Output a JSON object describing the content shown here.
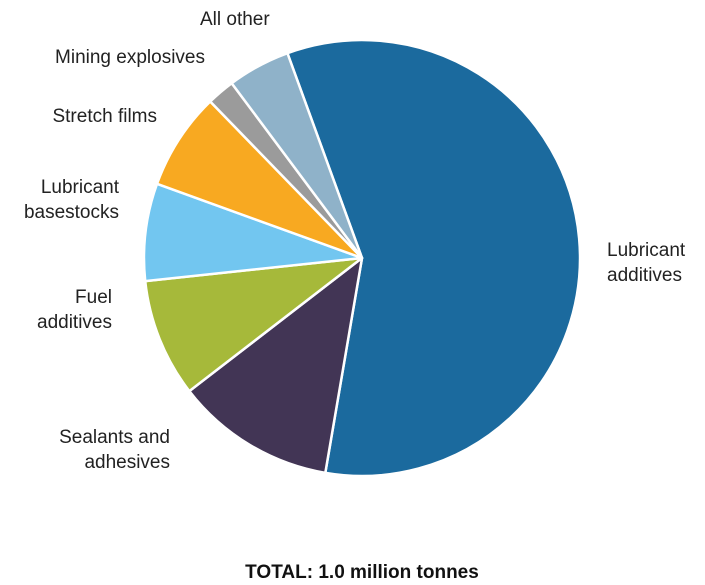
{
  "chart_data": {
    "type": "pie",
    "title": "",
    "total_label": "TOTAL: 1.0 million tonnes",
    "slices": [
      {
        "label": "Lubricant additives",
        "lines": [
          "Lubricant",
          "additives"
        ],
        "value": 56.5,
        "color": "#1b6a9e"
      },
      {
        "label": "Sealants and adhesives",
        "lines": [
          "Sealants  and",
          "adhesives"
        ],
        "value": 11.5,
        "color": "#423555"
      },
      {
        "label": "Fuel additives",
        "lines": [
          "Fuel",
          "additives"
        ],
        "value": 8.5,
        "color": "#a6b93a"
      },
      {
        "label": "Lubricant basestocks",
        "lines": [
          "Lubricant",
          "basestocks"
        ],
        "value": 7.0,
        "color": "#72c6f0"
      },
      {
        "label": "Stretch films",
        "lines": [
          "Stretch films"
        ],
        "value": 7.0,
        "color": "#f8a921"
      },
      {
        "label": "Mining explosives",
        "lines": [
          "Mining explosives"
        ],
        "value": 2.0,
        "color": "#9b9b9b"
      },
      {
        "label": "All other",
        "lines": [
          "All other"
        ],
        "value": 4.5,
        "color": "#8fb2c9"
      }
    ]
  }
}
